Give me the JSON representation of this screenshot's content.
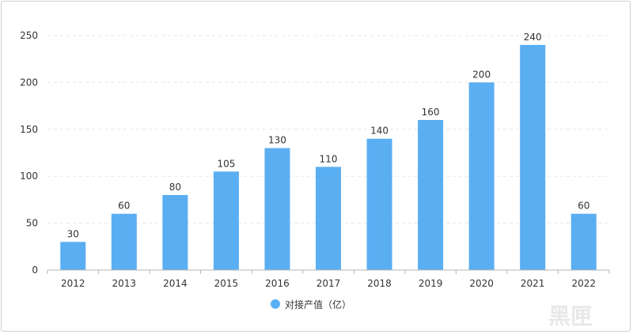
{
  "chart_data": {
    "type": "bar",
    "categories": [
      "2012",
      "2013",
      "2014",
      "2015",
      "2016",
      "2017",
      "2018",
      "2019",
      "2020",
      "2021",
      "2022"
    ],
    "series": [
      {
        "name": "对接产值（亿）",
        "values": [
          30,
          60,
          80,
          105,
          130,
          110,
          140,
          160,
          200,
          240,
          60
        ],
        "color": "#5aaef2"
      }
    ],
    "ylim": [
      0,
      250
    ],
    "yticks": [
      0,
      50,
      100,
      150,
      200,
      250
    ],
    "grid": true,
    "legend": "bottom-center",
    "show_data_labels": true
  },
  "watermark": {
    "text": "黑匣"
  }
}
